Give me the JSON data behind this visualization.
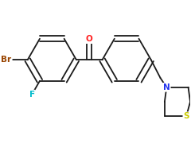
{
  "background_color": "#ffffff",
  "bond_color": "#1a1a1a",
  "atom_labels": {
    "O": {
      "color": "#ff2222"
    },
    "Br": {
      "color": "#994400"
    },
    "F": {
      "color": "#00bbcc"
    },
    "N": {
      "color": "#2233ee"
    },
    "S": {
      "color": "#cccc00"
    }
  },
  "figsize": [
    2.4,
    2.0
  ],
  "dpi": 100
}
